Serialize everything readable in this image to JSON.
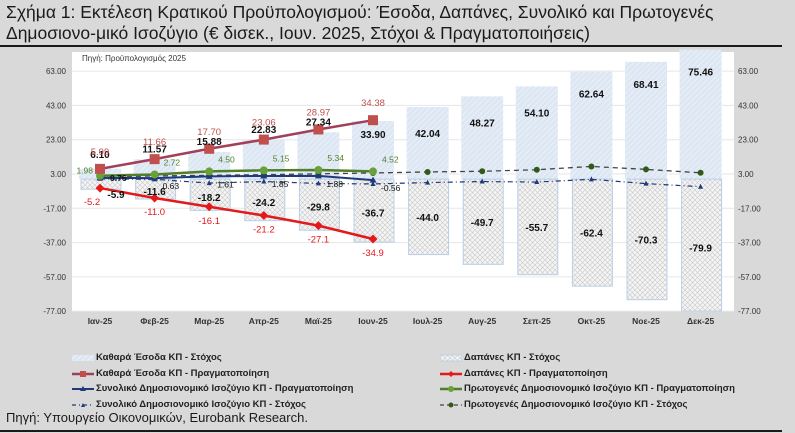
{
  "title": "Σχήμα 1: Εκτέλεση Κρατικού Προϋπολογισμού: Έσοδα, Δαπάνες, Συνολικό και Πρωτογενές Δημοσιονο-μικό Ισοζύγιο (€ δισεκ., Ιουν. 2025, Στόχοι & Πραγματοποιήσεις)",
  "inner_source": "Πηγή: Προϋπολογισμός 2025",
  "footer_source": "Πηγή: Υπουργείο Οικονομικών, Eurobank Research.",
  "colors": {
    "revenue_target": "#dce6f2",
    "expenditure_target_border": "#b8d0ea",
    "revenue_actual": "#a0405a",
    "revenue_actual_marker": "#c0504d",
    "expenditure_actual": "#e31a1c",
    "overall_balance": "#1f3a7a",
    "primary_balance": "#4f7f2a",
    "primary_target_marker": "#2f5a1a"
  },
  "legend": [
    {
      "key": "revenue_target",
      "label": "Καθαρά Έσοδα ΚΠ - Στόχος"
    },
    {
      "key": "expenditure_target",
      "label": "Δαπάνες ΚΠ - Στόχος"
    },
    {
      "key": "revenue_actual",
      "label": "Καθαρά Έσοδα ΚΠ - Πραγματοποίηση"
    },
    {
      "key": "expenditure_actual",
      "label": "Δαπάνες ΚΠ - Πραγματοποίηση"
    },
    {
      "key": "overall_actual",
      "label": "Συνολικό Δημοσιονομικό Ισοζύγιο ΚΠ - Πραγματοποίηση"
    },
    {
      "key": "primary_actual",
      "label": "Πρωτογενές Δημοσιονομικό Ισοζύγιο ΚΠ - Πραγματοποίηση"
    },
    {
      "key": "overall_target",
      "label": "Συνολικό Δημοσιονομικό Ισοζύγιο ΚΠ - Στόχος"
    },
    {
      "key": "primary_target",
      "label": "Πρωτογενές Δημοσιονομικό Ισοζύγιο ΚΠ - Στόχος"
    }
  ],
  "chart_data": {
    "type": "bar",
    "title": "Εκτέλεση Κρατικού Προϋπολογισμού: Έσοδα, Δαπάνες, Συνολικό και Πρωτογενές Δημοσιονομικό Ισοζύγιο (€ δισεκ., Ιουν. 2025, Στόχοι & Πραγματοποιήσεις)",
    "categories": [
      "Ιαν-25",
      "Φεβ-25",
      "Μαρ-25",
      "Απρ-25",
      "Μαϊ-25",
      "Ιουν-25",
      "Ιουλ-25",
      "Αυγ-25",
      "Σεπ-25",
      "Οκτ-25",
      "Νοε-25",
      "Δεκ-25"
    ],
    "yticks": [
      "63.00",
      "43.00",
      "23.00",
      "3.00",
      "-17.00",
      "-37.00",
      "-57.00",
      "-77.00"
    ],
    "ylim": [
      -77,
      75
    ],
    "xlabel": "",
    "ylabel": "",
    "grid": true,
    "legend_position": "bottom",
    "series": [
      {
        "name": "Καθαρά Έσοδα ΚΠ - Στόχος",
        "type": "bar",
        "values": [
          6.1,
          11.57,
          15.88,
          22.83,
          27.34,
          33.9,
          42.04,
          48.27,
          54.1,
          62.64,
          68.41,
          75.46
        ]
      },
      {
        "name": "Δαπάνες ΚΠ - Στόχος",
        "type": "bar",
        "values": [
          -5.9,
          -11.6,
          -18.2,
          -24.2,
          -29.8,
          -36.7,
          -44.0,
          -49.7,
          -55.7,
          -62.4,
          -70.3,
          -79.9
        ]
      },
      {
        "name": "Καθαρά Έσοδα ΚΠ - Πραγματοποίηση",
        "type": "line",
        "values": [
          5.99,
          11.66,
          17.7,
          23.06,
          28.97,
          34.38,
          null,
          null,
          null,
          null,
          null,
          null
        ]
      },
      {
        "name": "Δαπάνες ΚΠ - Πραγματοποίηση",
        "type": "line",
        "values": [
          -5.2,
          -11.0,
          -16.1,
          -21.2,
          -27.1,
          -34.9,
          null,
          null,
          null,
          null,
          null,
          null
        ]
      },
      {
        "name": "Συνολικό Δημοσιονομικό Ισοζύγιο ΚΠ - Πραγματοποίηση",
        "type": "line",
        "values": [
          0.76,
          0.63,
          1.61,
          1.85,
          1.88,
          -0.56,
          null,
          null,
          null,
          null,
          null,
          null
        ]
      },
      {
        "name": "Πρωτογενές Δημοσιονομικό Ισοζύγιο ΚΠ - Πραγματοποίηση",
        "type": "line",
        "values": [
          1.98,
          2.72,
          4.5,
          5.15,
          5.34,
          4.52,
          null,
          null,
          null,
          null,
          null,
          null
        ]
      },
      {
        "name": "Συνολικό Δημοσιονομικό Ισοζύγιο ΚΠ - Στόχος",
        "type": "line",
        "values": [
          0.2,
          -0.1,
          -2.3,
          -1.4,
          -2.5,
          -2.8,
          -2.0,
          -1.4,
          -1.7,
          -0.1,
          -2.6,
          -4.4
        ]
      },
      {
        "name": "Πρωτογενές Δημοσιονομικό Ισοζύγιο ΚΠ - Στόχος",
        "type": "line",
        "values": [
          1.2,
          1.9,
          2.2,
          2.6,
          3.1,
          3.6,
          4.2,
          4.6,
          5.5,
          7.4,
          5.7,
          3.7
        ]
      }
    ]
  }
}
